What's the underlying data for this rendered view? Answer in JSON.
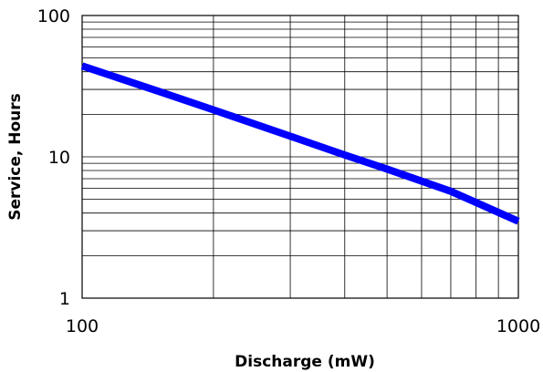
{
  "chart_data": {
    "type": "line",
    "title": "",
    "xlabel": "Discharge (mW)",
    "ylabel": "Service, Hours",
    "x_scale": "log",
    "y_scale": "log",
    "xlim": [
      100,
      1000
    ],
    "ylim": [
      1,
      100
    ],
    "x_ticks": [
      "100",
      "1000"
    ],
    "y_ticks": [
      "100",
      "10",
      "1"
    ],
    "grid": true,
    "legend": "none",
    "series": [
      {
        "color": "#0000ff",
        "x": [
          100,
          150,
          200,
          300,
          400,
          500,
          700,
          1000
        ],
        "y": [
          44,
          29,
          21.5,
          14,
          10.3,
          8.2,
          5.7,
          3.5
        ]
      }
    ]
  }
}
